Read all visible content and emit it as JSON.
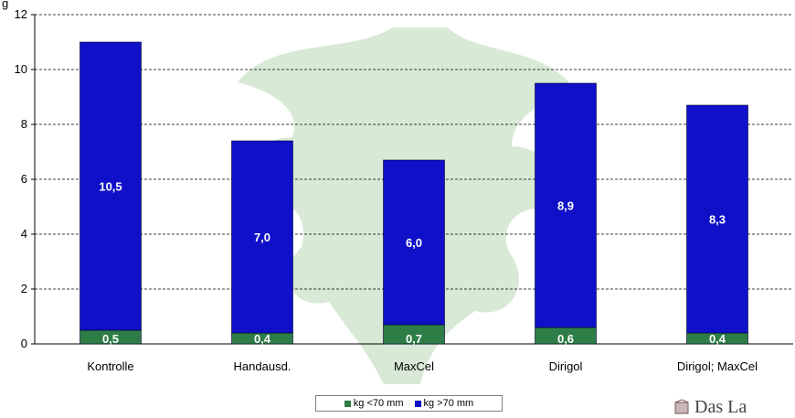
{
  "chart_data": {
    "type": "bar",
    "stacked": true,
    "categories": [
      "Kontrolle",
      "Handausd.",
      "MaxCel",
      "Dirigol",
      "Dirigol; MaxCel"
    ],
    "series": [
      {
        "name": "kg <70 mm",
        "values": [
          0.5,
          0.4,
          0.7,
          0.6,
          0.4
        ],
        "labels": [
          "0,5",
          "0,4",
          "0,7",
          "0,6",
          "0,4"
        ],
        "color": "#2e7d46"
      },
      {
        "name": "kg >70 mm",
        "values": [
          10.5,
          7.0,
          6.0,
          8.9,
          8.3
        ],
        "labels": [
          "10,5",
          "7,0",
          "6,0",
          "8,9",
          "8,3"
        ],
        "color": "#1010c8"
      }
    ],
    "ylim": [
      0,
      12
    ],
    "yticks": [
      0,
      2,
      4,
      6,
      8,
      10,
      12
    ],
    "ytick_labels": [
      "0",
      "2",
      "4",
      "6",
      "8",
      "10",
      "12"
    ],
    "grid": "dashed horizontal",
    "legend_position": "bottom-center",
    "ylabel_fragment": "g"
  },
  "watermark_text": "Das La"
}
